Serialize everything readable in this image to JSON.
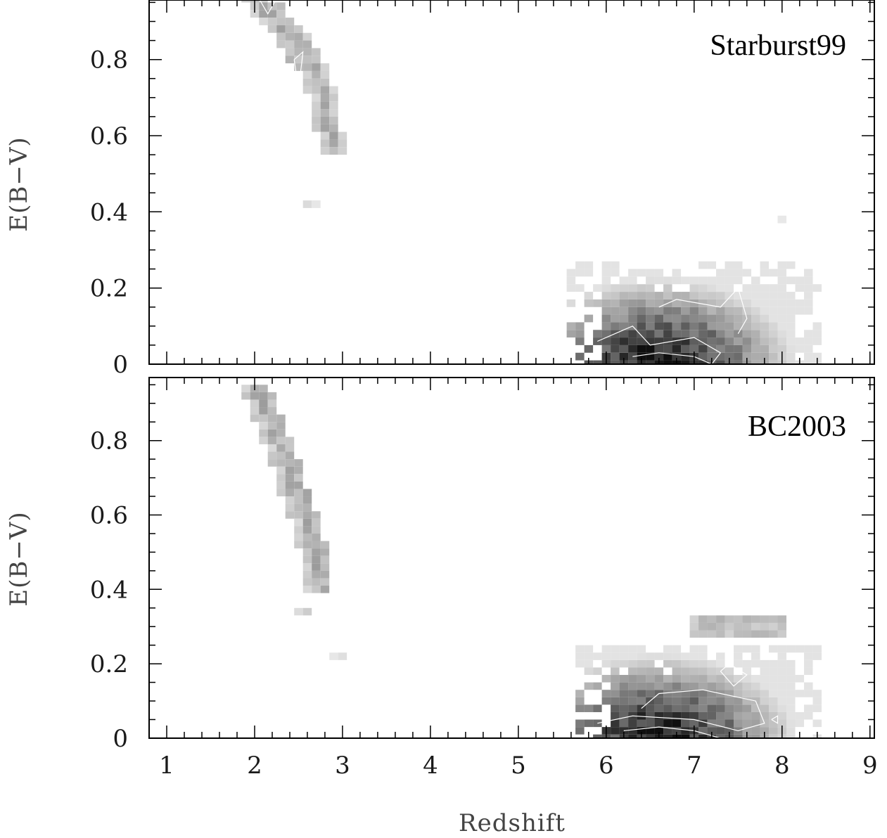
{
  "chart_data": {
    "type": "heatmap",
    "shared_xlabel": "Redshift",
    "xlim": [
      0.8,
      9.05
    ],
    "x_ticks": [
      "1",
      "2",
      "3",
      "4",
      "5",
      "6",
      "7",
      "8",
      "9"
    ],
    "y_ticks": [
      "0",
      "0.2",
      "0.4",
      "0.6",
      "0.8"
    ],
    "ylim": [
      0,
      0.96
    ],
    "grid": false,
    "cell_size": {
      "dz": 0.1,
      "debv": 0.02
    },
    "panels": [
      {
        "label": "Starburst99",
        "ylabel": "E(B−V)",
        "regions": [
          {
            "z": [
              2.0,
              2.3,
              2.6,
              2.8,
              2.9
            ],
            "ebv": [
              0.96,
              0.9,
              0.82,
              0.7,
              0.55
            ],
            "width_z": 0.22,
            "intensity": 0.35
          },
          {
            "z": [
              2.2,
              2.35,
              2.55
            ],
            "ebv": [
              0.93,
              0.86,
              0.77
            ],
            "width_z": 0.1,
            "intensity": 0.5
          },
          {
            "z": [
              2.65
            ],
            "ebv": [
              0.41
            ],
            "width_z": 0.1,
            "intensity": 0.2
          },
          {
            "z": [
              8.05
            ],
            "ebv": [
              0.38
            ],
            "width_z": 0.1,
            "intensity": 0.12
          },
          {
            "z_range": [
              5.6,
              8.4
            ],
            "ebv_range": [
              0.0,
              0.26
            ],
            "peak_z": 6.6,
            "peak_ebv": 0.0,
            "intensity": 1.0
          }
        ]
      },
      {
        "label": "BC2003",
        "ylabel": "E(B−V)",
        "regions": [
          {
            "z": [
              2.05,
              2.3,
              2.5,
              2.7,
              2.78
            ],
            "ebv": [
              0.94,
              0.8,
              0.66,
              0.52,
              0.4
            ],
            "width_z": 0.28,
            "intensity": 0.38
          },
          {
            "z": [
              2.6
            ],
            "ebv": [
              0.33
            ],
            "width_z": 0.14,
            "intensity": 0.2
          },
          {
            "z": [
              2.93
            ],
            "ebv": [
              0.225
            ],
            "width_z": 0.1,
            "intensity": 0.18
          },
          {
            "z_range": [
              7.0,
              8.0
            ],
            "ebv_range": [
              0.27,
              0.31
            ],
            "intensity": 0.25
          },
          {
            "z_range": [
              5.7,
              8.4
            ],
            "ebv_range": [
              0.0,
              0.24
            ],
            "peak_z": 6.6,
            "peak_ebv": 0.0,
            "intensity": 1.0
          }
        ]
      }
    ]
  }
}
